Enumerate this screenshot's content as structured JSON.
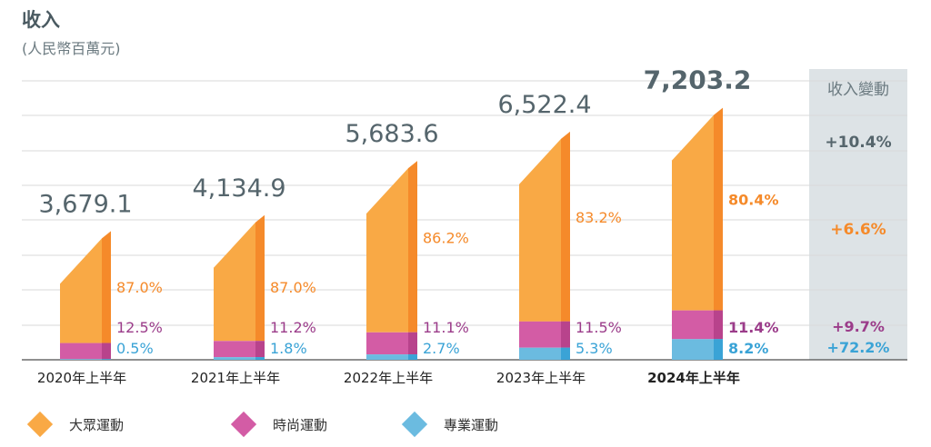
{
  "title": "收入",
  "unit": "(人民幣百萬元)",
  "colors": {
    "mass": "#f9a945",
    "mass_side": "#f58a2a",
    "fashion": "#d35ca5",
    "fashion_text": "#9b3c8a",
    "pro": "#6bbbe0",
    "pro_side": "#3aa3d6",
    "total_text": "#55656c",
    "change_panel": "#dde3e6",
    "grid": "#d9d9d9"
  },
  "chart_data": {
    "type": "bar",
    "stacked": true,
    "categories": [
      "2020年上半年",
      "2021年上半年",
      "2022年上半年",
      "2023年上半年",
      "2024年上半年"
    ],
    "totals": [
      "3,679.1",
      "4,134.9",
      "5,683.6",
      "6,522.4",
      "7,203.2"
    ],
    "total_values": [
      3679.1,
      4134.9,
      5683.6,
      6522.4,
      7203.2
    ],
    "series": [
      {
        "name": "大眾運動",
        "shares": [
          87.0,
          87.0,
          86.2,
          83.2,
          80.4
        ],
        "labels": [
          "87.0%",
          "87.0%",
          "86.2%",
          "83.2%",
          "80.4%"
        ]
      },
      {
        "name": "時尚運動",
        "shares": [
          12.5,
          11.2,
          11.1,
          11.5,
          11.4
        ],
        "labels": [
          "12.5%",
          "11.2%",
          "11.1%",
          "11.5%",
          "11.4%"
        ]
      },
      {
        "name": "專業運動",
        "shares": [
          0.5,
          1.8,
          2.7,
          5.3,
          8.2
        ],
        "labels": [
          "0.5%",
          "1.8%",
          "2.7%",
          "5.3%",
          "8.2%"
        ]
      }
    ],
    "highlight_category": "2024年上半年",
    "change_header": "收入變動",
    "change_total": "+10.4%",
    "changes": [
      "+6.6%",
      "+9.7%",
      "+72.2%"
    ],
    "ylim": [
      0,
      8000
    ],
    "grid": true,
    "legend_position": "bottom"
  }
}
